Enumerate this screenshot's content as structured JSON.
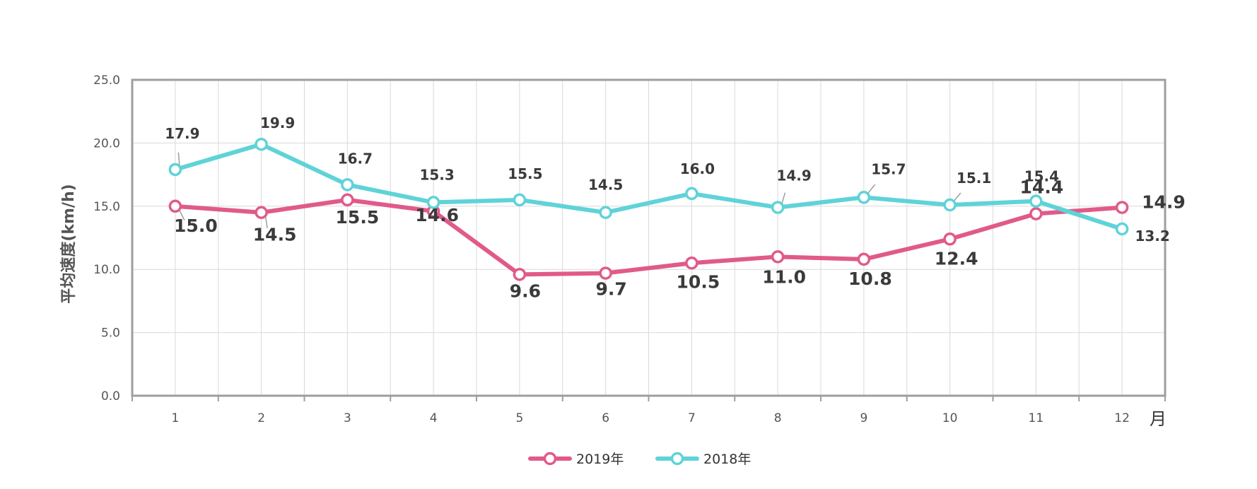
{
  "chart_data": {
    "type": "line",
    "title": "",
    "xlabel": "",
    "x_unit": "月",
    "ylabel": "平均速度(km/h)",
    "ylim": [
      0,
      25
    ],
    "yticks": [
      "0.0",
      "5.0",
      "10.0",
      "15.0",
      "20.0",
      "25.0"
    ],
    "categories": [
      "1",
      "2",
      "3",
      "4",
      "5",
      "6",
      "7",
      "8",
      "9",
      "10",
      "11",
      "12"
    ],
    "grid": true,
    "legend_position": "bottom",
    "series": [
      {
        "name": "2019年",
        "color": "#e05a8a",
        "values": [
          15.0,
          14.5,
          15.5,
          14.6,
          9.6,
          9.7,
          10.5,
          11.0,
          10.8,
          12.4,
          14.4,
          14.9
        ],
        "labels": [
          "15.0",
          "14.5",
          "15.5",
          "14.6",
          "9.6",
          "9.7",
          "10.5",
          "11.0",
          "10.8",
          "12.4",
          "14.4",
          "14.9"
        ]
      },
      {
        "name": "2018年",
        "color": "#5fd3d8",
        "values": [
          17.9,
          19.9,
          16.7,
          15.3,
          15.5,
          14.5,
          16.0,
          14.9,
          15.7,
          15.1,
          15.4,
          13.2
        ],
        "labels": [
          "17.9",
          "19.9",
          "16.7",
          "15.3",
          "15.5",
          "14.5",
          "16.0",
          "14.9",
          "15.7",
          "15.1",
          "15.4",
          "13.2"
        ]
      }
    ]
  }
}
